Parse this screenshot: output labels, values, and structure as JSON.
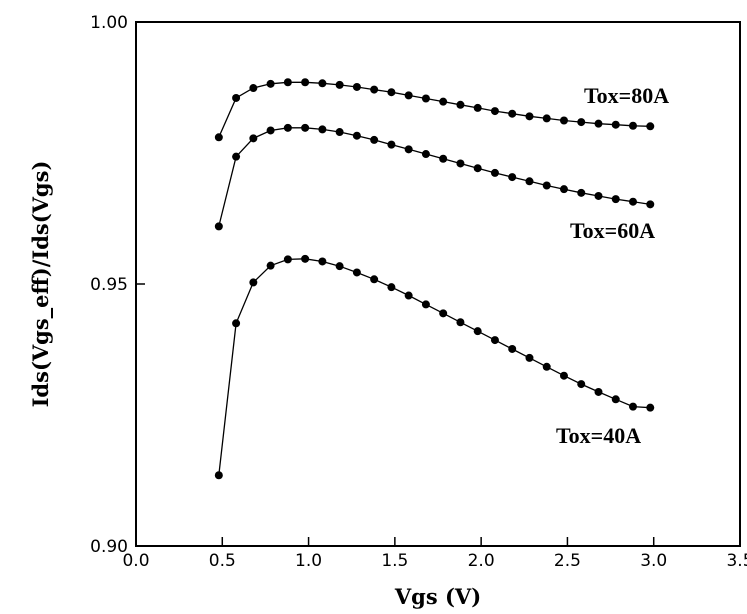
{
  "chart_data": {
    "type": "line",
    "title": "",
    "xlabel": "Vgs (V)",
    "ylabel": "Ids(Vgs_eff)/Ids(Vgs)",
    "xlim": [
      0.0,
      3.5
    ],
    "ylim": [
      0.9,
      1.0
    ],
    "x_ticks": [
      "0.0",
      "0.5",
      "1.0",
      "1.5",
      "2.0",
      "2.5",
      "3.0",
      "3.5"
    ],
    "y_ticks": [
      "0.90",
      "0.95",
      "1.00"
    ],
    "grid": false,
    "legend": "none",
    "marker": "filled-circle",
    "series": [
      {
        "name": "Tox=80A",
        "x": [
          0.48,
          0.58,
          0.68,
          0.78,
          0.88,
          0.98,
          1.08,
          1.18,
          1.28,
          1.38,
          1.48,
          1.58,
          1.68,
          1.78,
          1.88,
          1.98,
          2.08,
          2.18,
          2.28,
          2.38,
          2.48,
          2.58,
          2.68,
          2.78,
          2.88,
          2.98
        ],
        "y": [
          0.978,
          0.9855,
          0.9874,
          0.9882,
          0.9885,
          0.9885,
          0.9883,
          0.988,
          0.9876,
          0.9871,
          0.9866,
          0.986,
          0.9854,
          0.9848,
          0.9842,
          0.9836,
          0.983,
          0.9825,
          0.982,
          0.9816,
          0.9812,
          0.9809,
          0.9806,
          0.9804,
          0.9802,
          0.9801
        ]
      },
      {
        "name": "Tox=60A",
        "x": [
          0.48,
          0.58,
          0.68,
          0.78,
          0.88,
          0.98,
          1.08,
          1.18,
          1.28,
          1.38,
          1.48,
          1.58,
          1.68,
          1.78,
          1.88,
          1.98,
          2.08,
          2.18,
          2.28,
          2.38,
          2.48,
          2.58,
          2.68,
          2.78,
          2.88,
          2.98
        ],
        "y": [
          0.961,
          0.9743,
          0.9778,
          0.9793,
          0.9798,
          0.9798,
          0.9795,
          0.979,
          0.9783,
          0.9775,
          0.9766,
          0.9757,
          0.9748,
          0.9739,
          0.973,
          0.9721,
          0.9712,
          0.9704,
          0.9696,
          0.9688,
          0.9681,
          0.9674,
          0.9668,
          0.9662,
          0.9657,
          0.9652
        ]
      },
      {
        "name": "Tox=40A",
        "x": [
          0.48,
          0.58,
          0.68,
          0.78,
          0.88,
          0.98,
          1.08,
          1.18,
          1.28,
          1.38,
          1.48,
          1.58,
          1.68,
          1.78,
          1.88,
          1.98,
          2.08,
          2.18,
          2.28,
          2.38,
          2.48,
          2.58,
          2.68,
          2.78,
          2.88,
          2.98
        ],
        "y": [
          0.9135,
          0.9425,
          0.9503,
          0.9535,
          0.9547,
          0.9548,
          0.9543,
          0.9534,
          0.9522,
          0.9509,
          0.9494,
          0.9478,
          0.9461,
          0.9444,
          0.9427,
          0.941,
          0.9393,
          0.9376,
          0.9359,
          0.9342,
          0.9325,
          0.9309,
          0.9294,
          0.928,
          0.9266,
          0.9264
        ]
      }
    ]
  }
}
